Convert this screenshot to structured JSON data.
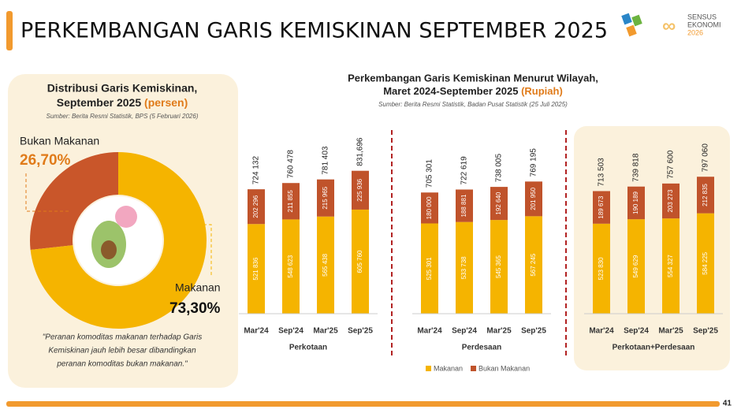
{
  "header": {
    "title": "PERKEMBANGAN GARIS KEMISKINAN SEPTEMBER 2025",
    "logo_lines": [
      "SENSUS",
      "EKONOMI",
      "2026"
    ]
  },
  "page_number": "41",
  "bar_section": {
    "title_lines": [
      "Perkembangan Garis Kemiskinan Menurut Wilayah,",
      "Maret 2024-September 2025"
    ],
    "title_unit": "(Rupiah)",
    "source": "Sumber: Berita Resmi Statistik, Badan Pusat Statistik (25 Juli 2025)"
  },
  "chart_data": [
    {
      "type": "pie",
      "title_lines": [
        "Distribusi Garis Kemiskinan,",
        "September 2025"
      ],
      "title_unit": "(persen)",
      "source": "Sumber: Berita Resmi Statistik, BPS (5 Februari 2026)",
      "categories": [
        "Bukan Makanan",
        "Makanan"
      ],
      "values": [
        26.7,
        73.3
      ],
      "value_labels": [
        "26,70%",
        "73,30%"
      ],
      "colors": [
        "#c9562a",
        "#f5b400"
      ],
      "note_lines": [
        "\"Peranan komoditas makanan terhadap Garis",
        "Kemiskinan jauh lebih besar dibandingkan",
        "peranan komoditas bukan makanan.\""
      ]
    },
    {
      "type": "bar",
      "stacked": true,
      "legend": true,
      "xlabel": "Perkotaan",
      "categories": [
        "Mar'24",
        "Sep'24",
        "Mar'25",
        "Sep'25"
      ],
      "series": [
        {
          "name": "Makanan",
          "color": "#f5b400",
          "values": [
            521836,
            548623,
            565438,
            605760
          ],
          "value_labels": [
            "521 836",
            "548 623",
            "565 438",
            "605 760"
          ]
        },
        {
          "name": "Bukan Makanan",
          "color": "#c0532b",
          "values": [
            202296,
            211855,
            215965,
            225936
          ],
          "value_labels": [
            "202 296",
            "211 855",
            "215 965",
            "225 936"
          ]
        }
      ],
      "totals": [
        724132,
        760478,
        781403,
        831696
      ],
      "total_labels": [
        "724 132",
        "760 478",
        "781 403",
        "831,696"
      ],
      "ylim": [
        0,
        1000000
      ]
    },
    {
      "type": "bar",
      "stacked": true,
      "xlabel": "Perdesaan",
      "categories": [
        "Mar'24",
        "Sep'24",
        "Mar'25",
        "Sep'25"
      ],
      "series": [
        {
          "name": "Makanan",
          "color": "#f5b400",
          "values": [
            525301,
            533738,
            545365,
            567245
          ],
          "value_labels": [
            "525 301",
            "533 738",
            "545 365",
            "567 245"
          ]
        },
        {
          "name": "Bukan Makanan",
          "color": "#c0532b",
          "values": [
            180000,
            188881,
            192640,
            201950
          ],
          "value_labels": [
            "180 000",
            "188 881",
            "192 640",
            "201 950"
          ]
        }
      ],
      "totals": [
        705301,
        722619,
        738005,
        769195
      ],
      "total_labels": [
        "705 301",
        "722 619",
        "738 005",
        "769 195"
      ],
      "ylim": [
        0,
        1000000
      ]
    },
    {
      "type": "bar",
      "stacked": true,
      "xlabel": "Perkotaan+Perdesaan",
      "categories": [
        "Mar'24",
        "Sep'24",
        "Mar'25",
        "Sep'25"
      ],
      "series": [
        {
          "name": "Makanan",
          "color": "#f5b400",
          "values": [
            523830,
            549629,
            554327,
            584225
          ],
          "value_labels": [
            "523 830",
            "549 629",
            "554 327",
            "584 225"
          ]
        },
        {
          "name": "Bukan Makanan",
          "color": "#c0532b",
          "values": [
            189673,
            190189,
            203273,
            212835
          ],
          "value_labels": [
            "189 673",
            "190 189",
            "203 273",
            "212 835"
          ]
        }
      ],
      "totals": [
        713503,
        739818,
        757600,
        797060
      ],
      "total_labels": [
        "713 503",
        "739 818",
        "757 600",
        "797 060"
      ],
      "ylim": [
        0,
        1000000
      ]
    }
  ]
}
